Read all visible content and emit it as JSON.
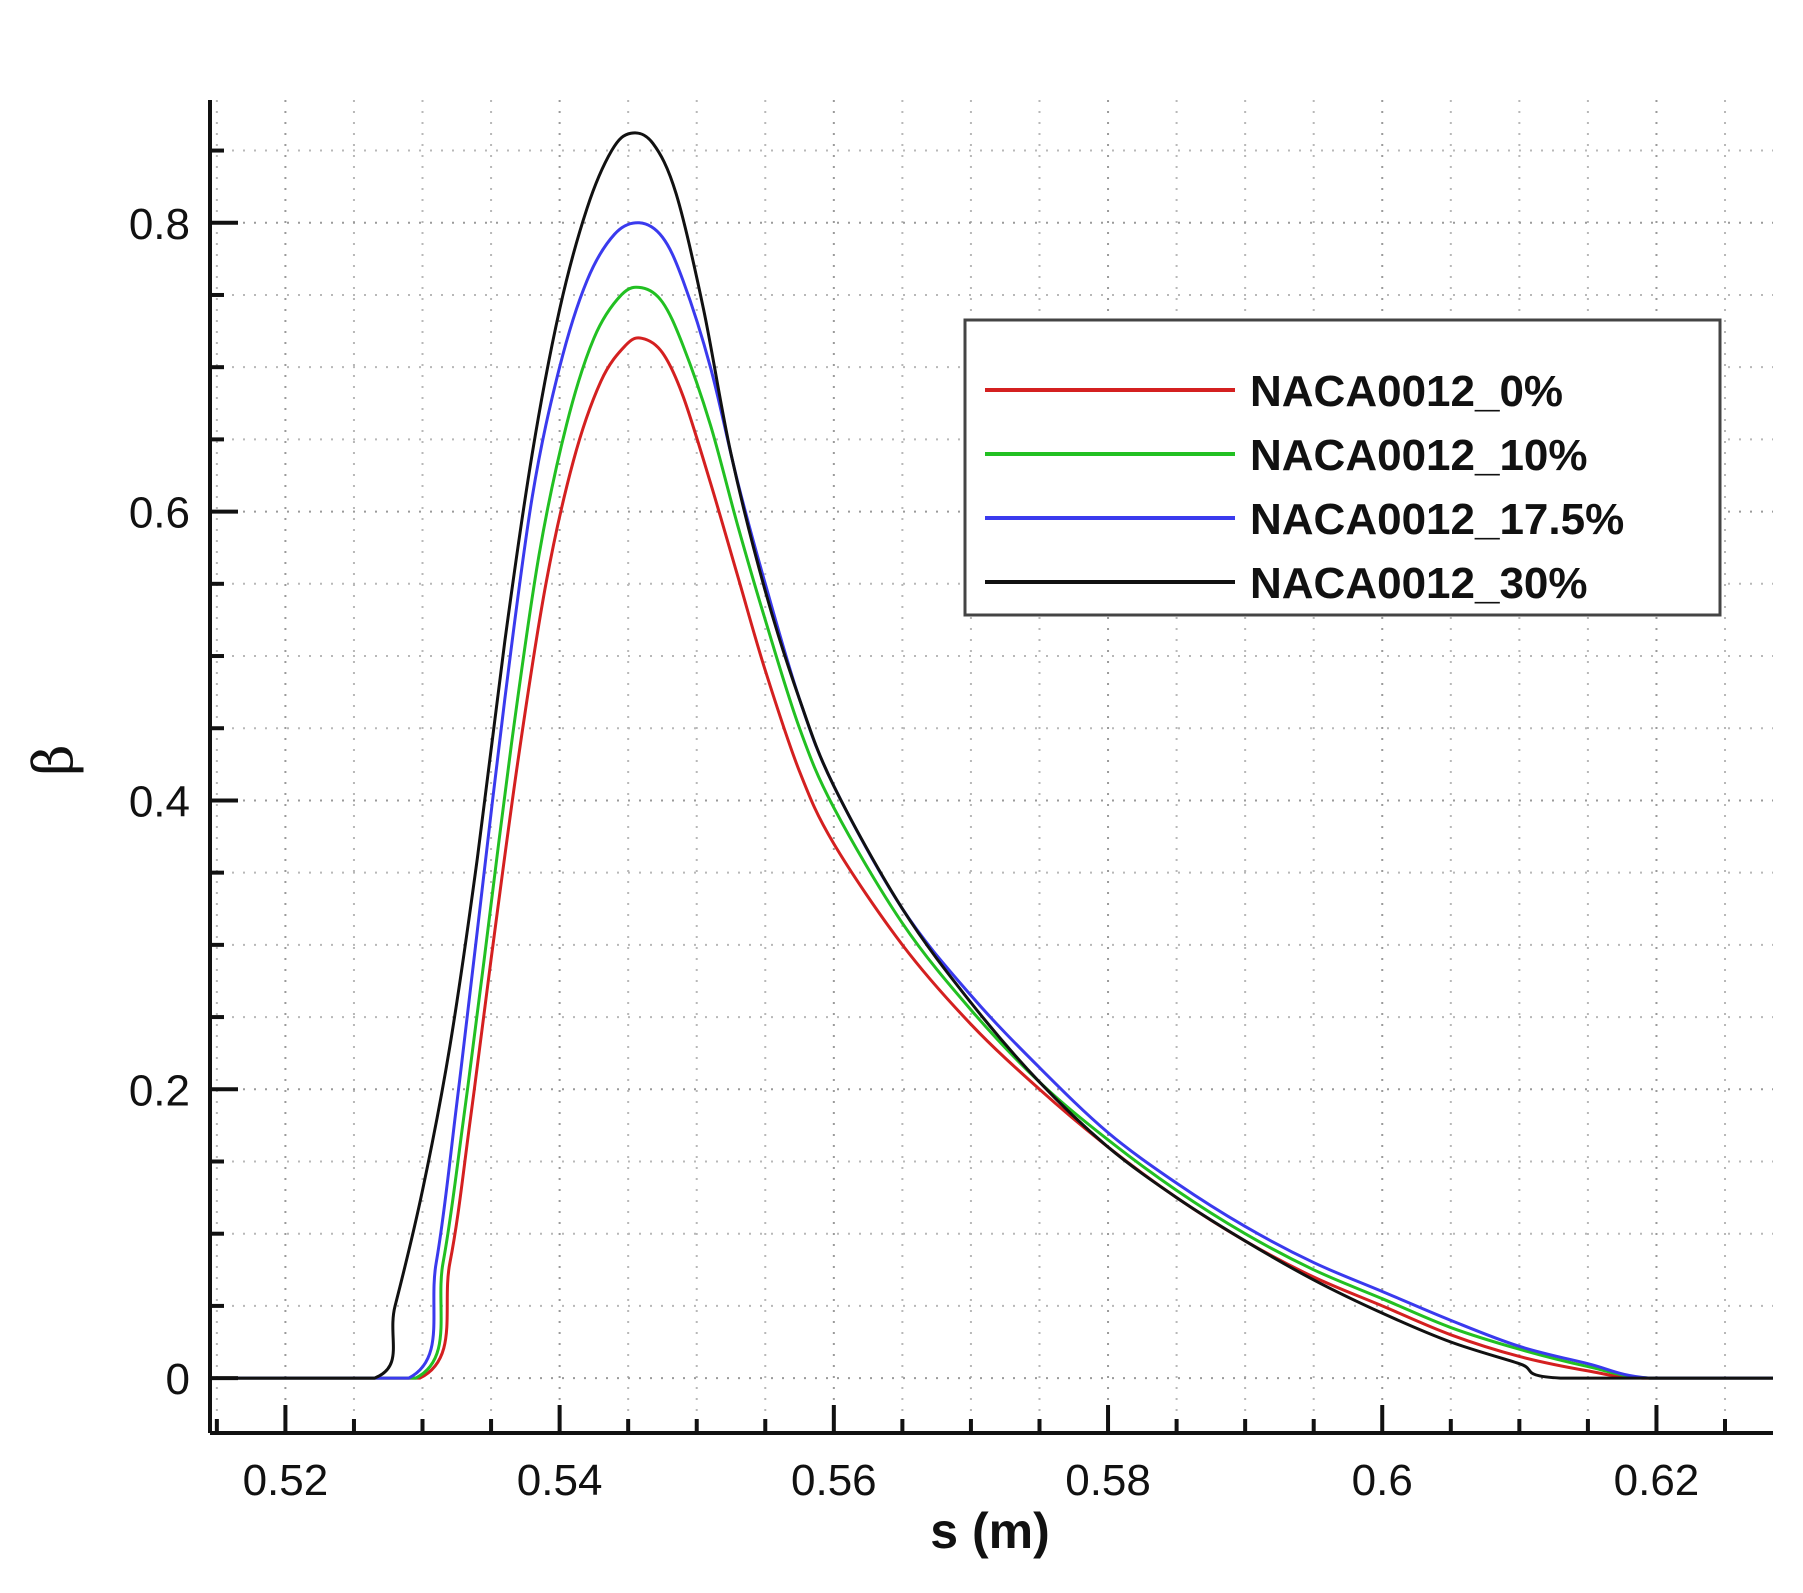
{
  "chart_data": {
    "type": "line",
    "title": "",
    "xlabel": "s (m)",
    "ylabel": "β",
    "xlim": [
      0.5145,
      0.6285
    ],
    "ylim": [
      -0.038,
      0.885
    ],
    "grid": true,
    "legend_position": "top-right",
    "x_ticks": [
      0.52,
      0.54,
      0.56,
      0.58,
      0.6,
      0.62
    ],
    "x_tick_labels": [
      "0.52",
      "0.54",
      "0.56",
      "0.58",
      "0.6",
      "0.62"
    ],
    "y_ticks": [
      0,
      0.2,
      0.4,
      0.6,
      0.8
    ],
    "y_tick_labels": [
      "0",
      "0.2",
      "0.4",
      "0.6",
      "0.8"
    ],
    "series": [
      {
        "name": "NACA0012_0%",
        "color": "#d42020",
        "points": [
          [
            0.5145,
            0
          ],
          [
            0.5298,
            0
          ],
          [
            0.532,
            0.08
          ],
          [
            0.5335,
            0.18
          ],
          [
            0.535,
            0.29
          ],
          [
            0.537,
            0.43
          ],
          [
            0.539,
            0.55
          ],
          [
            0.541,
            0.635
          ],
          [
            0.543,
            0.69
          ],
          [
            0.5448,
            0.715
          ],
          [
            0.546,
            0.72
          ],
          [
            0.5475,
            0.71
          ],
          [
            0.549,
            0.68
          ],
          [
            0.551,
            0.62
          ],
          [
            0.553,
            0.555
          ],
          [
            0.555,
            0.49
          ],
          [
            0.5575,
            0.42
          ],
          [
            0.56,
            0.37
          ],
          [
            0.565,
            0.3
          ],
          [
            0.57,
            0.245
          ],
          [
            0.575,
            0.2
          ],
          [
            0.58,
            0.16
          ],
          [
            0.585,
            0.125
          ],
          [
            0.59,
            0.095
          ],
          [
            0.595,
            0.07
          ],
          [
            0.6,
            0.05
          ],
          [
            0.605,
            0.03
          ],
          [
            0.61,
            0.015
          ],
          [
            0.615,
            0.005
          ],
          [
            0.619,
            0
          ],
          [
            0.6285,
            0
          ]
        ]
      },
      {
        "name": "NACA0012_10%",
        "color": "#22c022",
        "points": [
          [
            0.5145,
            0
          ],
          [
            0.5295,
            0
          ],
          [
            0.5315,
            0.08
          ],
          [
            0.533,
            0.18
          ],
          [
            0.5345,
            0.29
          ],
          [
            0.5365,
            0.44
          ],
          [
            0.5385,
            0.57
          ],
          [
            0.5405,
            0.66
          ],
          [
            0.5425,
            0.72
          ],
          [
            0.5445,
            0.75
          ],
          [
            0.546,
            0.755
          ],
          [
            0.5475,
            0.745
          ],
          [
            0.549,
            0.715
          ],
          [
            0.551,
            0.66
          ],
          [
            0.553,
            0.59
          ],
          [
            0.555,
            0.525
          ],
          [
            0.5575,
            0.45
          ],
          [
            0.56,
            0.395
          ],
          [
            0.565,
            0.315
          ],
          [
            0.57,
            0.255
          ],
          [
            0.575,
            0.205
          ],
          [
            0.58,
            0.165
          ],
          [
            0.585,
            0.13
          ],
          [
            0.59,
            0.1
          ],
          [
            0.595,
            0.075
          ],
          [
            0.6,
            0.055
          ],
          [
            0.605,
            0.035
          ],
          [
            0.61,
            0.02
          ],
          [
            0.615,
            0.008
          ],
          [
            0.6195,
            0
          ],
          [
            0.6285,
            0
          ]
        ]
      },
      {
        "name": "NACA0012_17.5%",
        "color": "#3a3aee",
        "points": [
          [
            0.5145,
            0
          ],
          [
            0.529,
            0
          ],
          [
            0.531,
            0.08
          ],
          [
            0.5325,
            0.19
          ],
          [
            0.534,
            0.31
          ],
          [
            0.536,
            0.47
          ],
          [
            0.538,
            0.61
          ],
          [
            0.54,
            0.7
          ],
          [
            0.542,
            0.76
          ],
          [
            0.544,
            0.792
          ],
          [
            0.5458,
            0.8
          ],
          [
            0.5475,
            0.79
          ],
          [
            0.549,
            0.76
          ],
          [
            0.551,
            0.7
          ],
          [
            0.553,
            0.62
          ],
          [
            0.555,
            0.55
          ],
          [
            0.5575,
            0.47
          ],
          [
            0.56,
            0.41
          ],
          [
            0.565,
            0.325
          ],
          [
            0.57,
            0.265
          ],
          [
            0.575,
            0.215
          ],
          [
            0.58,
            0.17
          ],
          [
            0.585,
            0.135
          ],
          [
            0.59,
            0.105
          ],
          [
            0.595,
            0.08
          ],
          [
            0.6,
            0.06
          ],
          [
            0.605,
            0.04
          ],
          [
            0.61,
            0.022
          ],
          [
            0.615,
            0.01
          ],
          [
            0.6195,
            0
          ],
          [
            0.6285,
            0
          ]
        ]
      },
      {
        "name": "NACA0012_30%",
        "color": "#111111",
        "points": [
          [
            0.5145,
            0
          ],
          [
            0.5265,
            0
          ],
          [
            0.528,
            0.05
          ],
          [
            0.53,
            0.13
          ],
          [
            0.532,
            0.23
          ],
          [
            0.534,
            0.36
          ],
          [
            0.536,
            0.51
          ],
          [
            0.538,
            0.64
          ],
          [
            0.54,
            0.74
          ],
          [
            0.542,
            0.81
          ],
          [
            0.5438,
            0.85
          ],
          [
            0.5452,
            0.862
          ],
          [
            0.5468,
            0.855
          ],
          [
            0.5485,
            0.82
          ],
          [
            0.5505,
            0.74
          ],
          [
            0.5525,
            0.64
          ],
          [
            0.555,
            0.545
          ],
          [
            0.5575,
            0.47
          ],
          [
            0.56,
            0.41
          ],
          [
            0.565,
            0.325
          ],
          [
            0.57,
            0.26
          ],
          [
            0.575,
            0.205
          ],
          [
            0.58,
            0.16
          ],
          [
            0.585,
            0.125
          ],
          [
            0.59,
            0.095
          ],
          [
            0.595,
            0.068
          ],
          [
            0.6,
            0.045
          ],
          [
            0.605,
            0.025
          ],
          [
            0.61,
            0.01
          ],
          [
            0.613,
            0
          ],
          [
            0.6285,
            0
          ]
        ]
      }
    ]
  }
}
